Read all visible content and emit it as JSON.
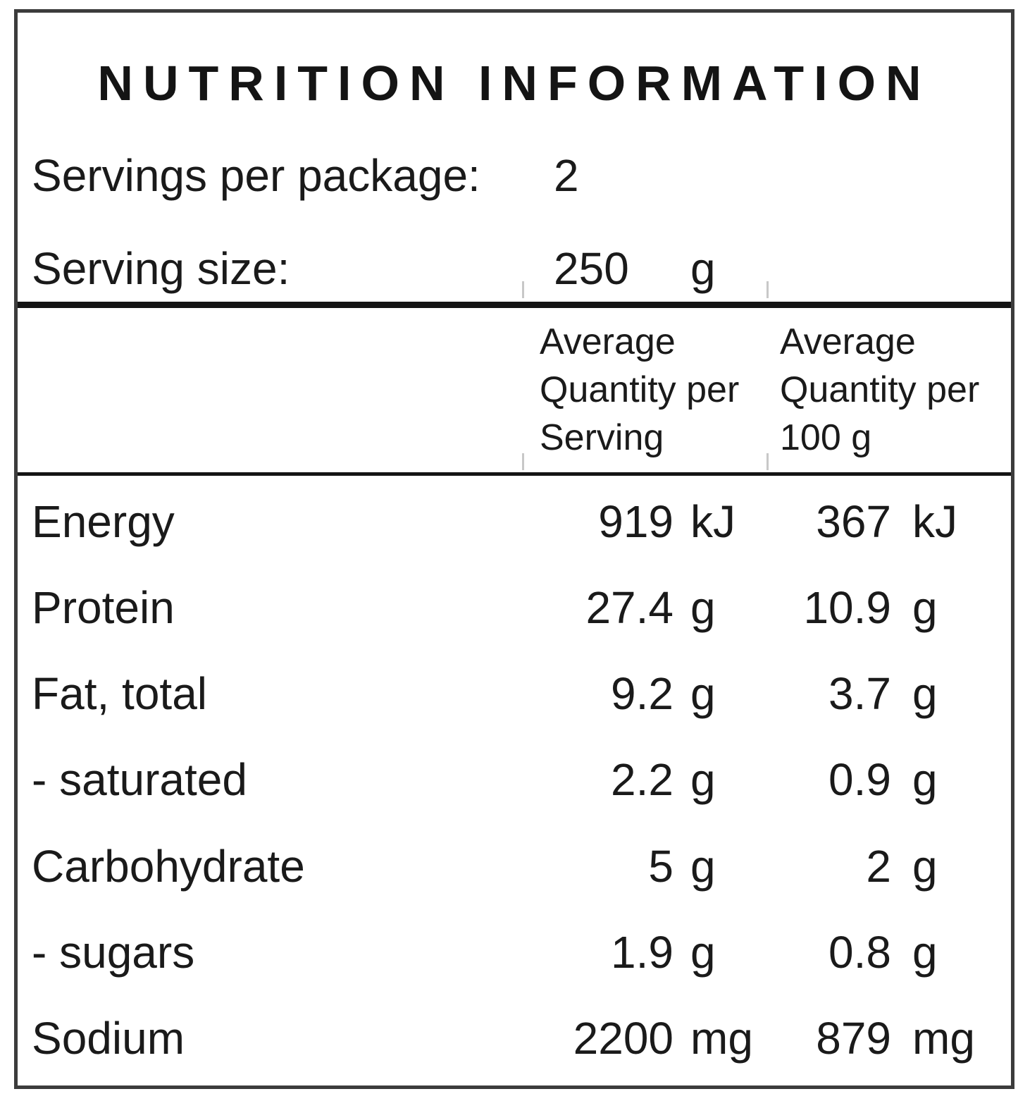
{
  "panel": {
    "title": "NUTRITION INFORMATION"
  },
  "serving_info": {
    "rows": [
      {
        "label": "Servings per package:",
        "value": "2",
        "unit": ""
      },
      {
        "label": "Serving size:",
        "value": "250",
        "unit": "g"
      }
    ]
  },
  "table": {
    "header": {
      "per_serving": [
        "Average",
        "Quantity per",
        "Serving"
      ],
      "per_100g": [
        "Average",
        "Quantity per",
        "100 g"
      ]
    },
    "rows": [
      {
        "nutrient": "Energy",
        "serving_value": "919",
        "serving_unit": "kJ",
        "per100_value": "367",
        "per100_unit": "kJ"
      },
      {
        "nutrient": "Protein",
        "serving_value": "27.4",
        "serving_unit": "g",
        "per100_value": "10.9",
        "per100_unit": "g"
      },
      {
        "nutrient": "Fat, total",
        "serving_value": "9.2",
        "serving_unit": "g",
        "per100_value": "3.7",
        "per100_unit": "g"
      },
      {
        "nutrient": "- saturated",
        "serving_value": "2.2",
        "serving_unit": "g",
        "per100_value": "0.9",
        "per100_unit": "g"
      },
      {
        "nutrient": "Carbohydrate",
        "serving_value": "5",
        "serving_unit": "g",
        "per100_value": "2",
        "per100_unit": "g"
      },
      {
        "nutrient": "- sugars",
        "serving_value": "1.9",
        "serving_unit": "g",
        "per100_value": "0.8",
        "per100_unit": "g"
      },
      {
        "nutrient": "Sodium",
        "serving_value": "2200",
        "serving_unit": "mg",
        "per100_value": "879",
        "per100_unit": "mg"
      }
    ]
  },
  "colors": {
    "background": "#ffffff",
    "text": "#1a1a1a",
    "outer_border": "#3c3c3c",
    "divider": "#141414"
  }
}
